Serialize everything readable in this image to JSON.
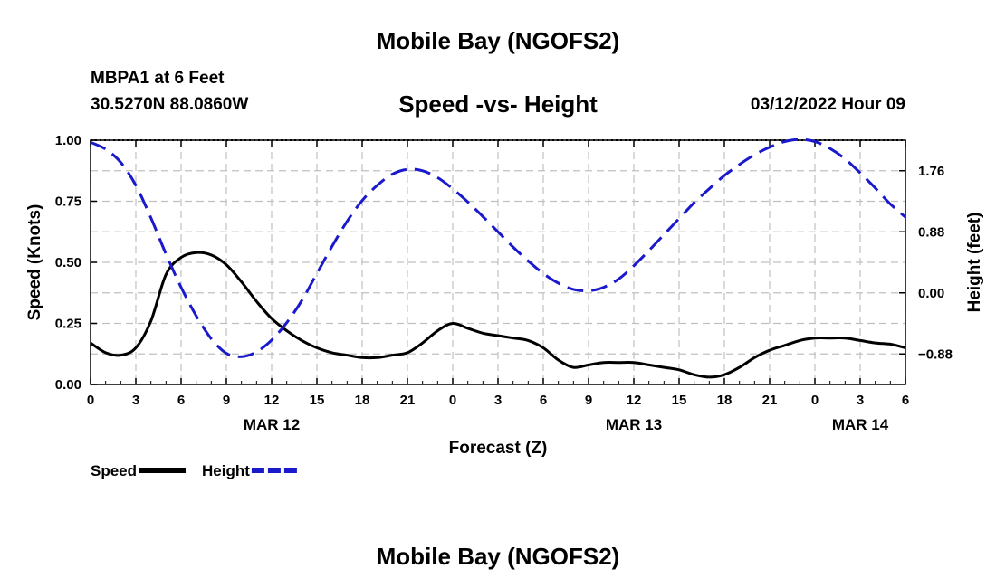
{
  "header": {
    "title": "Mobile Bay (NGOFS2)",
    "station": "MBPA1 at 6 Feet",
    "coords": "30.5270N  88.0860W",
    "run_time": "03/12/2022 Hour 09"
  },
  "footer": {
    "title": "Mobile Bay (NGOFS2)"
  },
  "chart_data": {
    "type": "line",
    "title": "Speed -vs- Height",
    "xlabel": "Forecast (Z)",
    "ylabel": "Speed (Knots)",
    "y2label": "Height (feet)",
    "x_range": [
      0,
      54
    ],
    "x_ticks": [
      0,
      3,
      6,
      9,
      12,
      15,
      18,
      21,
      24,
      27,
      30,
      33,
      36,
      39,
      42,
      45,
      48,
      51,
      54
    ],
    "x_tick_labels": [
      "0",
      "3",
      "6",
      "9",
      "12",
      "15",
      "18",
      "21",
      "0",
      "3",
      "6",
      "9",
      "12",
      "15",
      "18",
      "21",
      "0",
      "3",
      "6"
    ],
    "date_labels": [
      {
        "x": 12,
        "label": "MAR 12"
      },
      {
        "x": 36,
        "label": "MAR 13"
      },
      {
        "x": 51,
        "label": "MAR 14"
      }
    ],
    "ylim": [
      0,
      1
    ],
    "y_ticks": [
      0,
      0.25,
      0.5,
      0.75,
      1.0
    ],
    "y_tick_labels": [
      "0.00",
      "0.25",
      "0.50",
      "0.75",
      "1.00"
    ],
    "y2lim": [
      -1.32,
      2.2
    ],
    "y2_ticks": [
      -0.88,
      0,
      0.88,
      1.76
    ],
    "y2_tick_labels": [
      "−0.88",
      "0.00",
      "0.88",
      "1.76"
    ],
    "grid": true,
    "legend": [
      {
        "name": "Speed",
        "color": "#000000",
        "dash": "solid"
      },
      {
        "name": "Height",
        "color": "#1a1acc",
        "dash": "dashed"
      }
    ],
    "series": [
      {
        "name": "Speed",
        "axis": "left",
        "color": "#000000",
        "x": [
          0,
          1,
          2,
          3,
          4,
          5,
          6,
          7,
          8,
          9,
          10,
          11,
          12,
          13,
          14,
          15,
          16,
          17,
          18,
          19,
          20,
          21,
          22,
          23,
          24,
          25,
          26,
          27,
          28,
          29,
          30,
          31,
          32,
          33,
          34,
          35,
          36,
          37,
          38,
          39,
          40,
          41,
          42,
          43,
          44,
          45,
          46,
          47,
          48,
          49,
          50,
          51,
          52,
          53,
          54
        ],
        "values": [
          0.17,
          0.13,
          0.12,
          0.15,
          0.26,
          0.45,
          0.52,
          0.54,
          0.53,
          0.49,
          0.42,
          0.34,
          0.27,
          0.22,
          0.18,
          0.15,
          0.13,
          0.12,
          0.11,
          0.11,
          0.12,
          0.13,
          0.17,
          0.22,
          0.25,
          0.23,
          0.21,
          0.2,
          0.19,
          0.18,
          0.15,
          0.1,
          0.07,
          0.08,
          0.09,
          0.09,
          0.09,
          0.08,
          0.07,
          0.06,
          0.04,
          0.03,
          0.04,
          0.07,
          0.11,
          0.14,
          0.16,
          0.18,
          0.19,
          0.19,
          0.19,
          0.18,
          0.17,
          0.165,
          0.15
        ]
      },
      {
        "name": "Height",
        "axis": "right",
        "color": "#1a1acc",
        "x": [
          0,
          1,
          2,
          3,
          4,
          5,
          6,
          7,
          8,
          9,
          10,
          11,
          12,
          13,
          14,
          15,
          16,
          17,
          18,
          19,
          20,
          21,
          22,
          23,
          24,
          25,
          26,
          27,
          28,
          29,
          30,
          31,
          32,
          33,
          34,
          35,
          36,
          37,
          38,
          39,
          40,
          41,
          42,
          43,
          44,
          45,
          46,
          47,
          48,
          49,
          50,
          51,
          52,
          53,
          54
        ],
        "values": [
          2.17,
          2.07,
          1.88,
          1.55,
          1.08,
          0.56,
          0.08,
          -0.33,
          -0.66,
          -0.87,
          -0.92,
          -0.85,
          -0.68,
          -0.43,
          -0.11,
          0.28,
          0.67,
          1.03,
          1.33,
          1.55,
          1.71,
          1.78,
          1.76,
          1.66,
          1.5,
          1.31,
          1.1,
          0.88,
          0.66,
          0.46,
          0.28,
          0.14,
          0.05,
          0.03,
          0.08,
          0.2,
          0.39,
          0.61,
          0.84,
          1.07,
          1.3,
          1.5,
          1.69,
          1.85,
          1.99,
          2.1,
          2.18,
          2.21,
          2.18,
          2.08,
          1.93,
          1.73,
          1.51,
          1.28,
          1.09
        ]
      }
    ]
  }
}
